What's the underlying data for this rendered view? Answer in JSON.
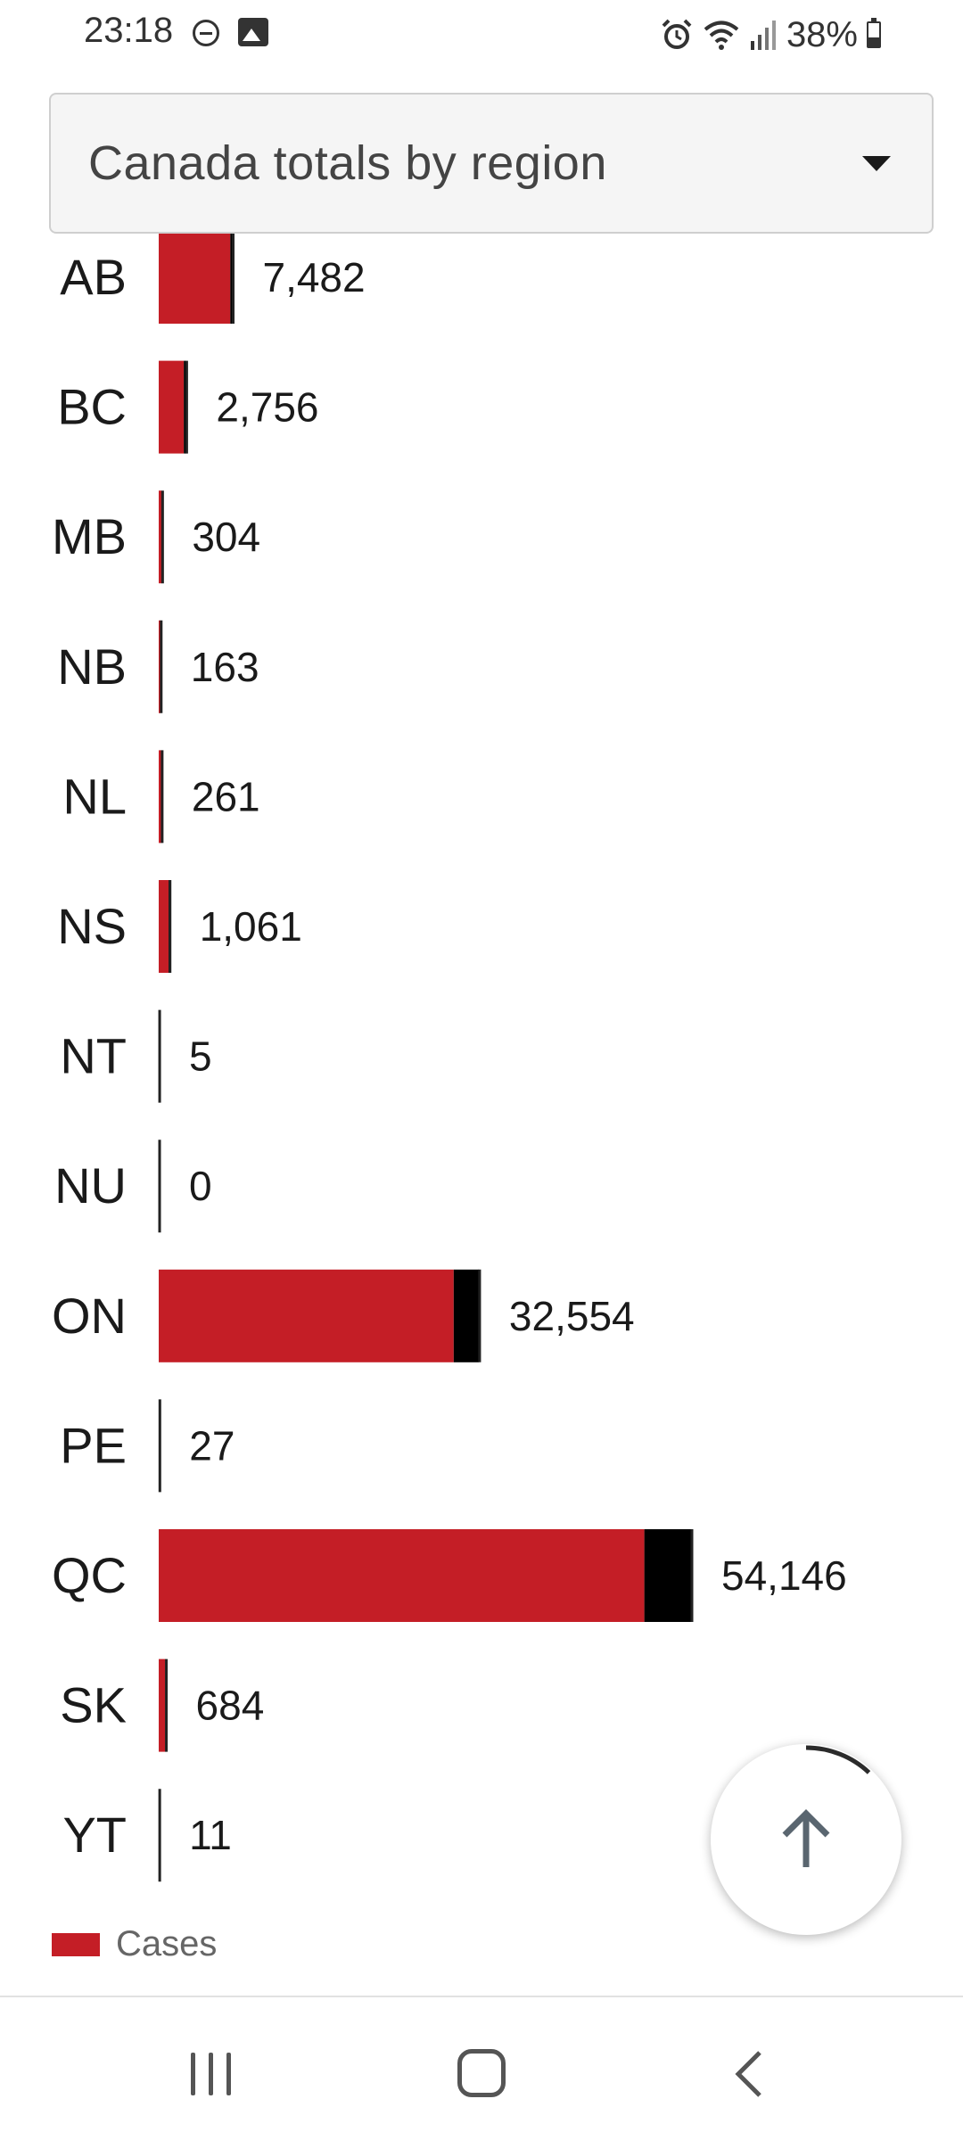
{
  "status_bar": {
    "time": "23:18",
    "battery_text": "38%",
    "battery_level": 0.38,
    "icons": [
      "do-not-disturb-icon",
      "gallery-icon",
      "alarm-icon",
      "wifi-icon",
      "signal-icon",
      "battery-icon"
    ]
  },
  "dropdown": {
    "selected": "Canada totals by region"
  },
  "chart_data": {
    "type": "bar",
    "orientation": "horizontal",
    "categories": [
      "AB",
      "BC",
      "MB",
      "NB",
      "NL",
      "NS",
      "NT",
      "NU",
      "ON",
      "PE",
      "QC",
      "SK",
      "YT"
    ],
    "series": [
      {
        "name": "Cases",
        "color": "#c41e26",
        "values": [
          7482,
          2756,
          304,
          163,
          261,
          1061,
          5,
          0,
          32554,
          27,
          54146,
          684,
          11
        ]
      },
      {
        "name": "",
        "color": "#000000",
        "values": [
          200,
          200,
          5,
          2,
          3,
          60,
          0,
          0,
          2550,
          0,
          4750,
          16,
          0
        ]
      }
    ],
    "value_labels": [
      "7,482",
      "2,756",
      "304",
      "163",
      "261",
      "1,061",
      "5",
      "0",
      "32,554",
      "27",
      "54,146",
      "684",
      "11"
    ],
    "legend": [
      "Cases"
    ],
    "legend_position": "bottom-left",
    "xlim": [
      0,
      54146
    ],
    "grid": false
  },
  "legend": {
    "cases_label": "Cases",
    "cases_color": "#c41e26"
  },
  "fab": {
    "icon": "arrow-up-icon",
    "progress": 0.12
  },
  "nav_bar": {
    "icons": [
      "recents-icon",
      "home-icon",
      "back-icon"
    ]
  }
}
